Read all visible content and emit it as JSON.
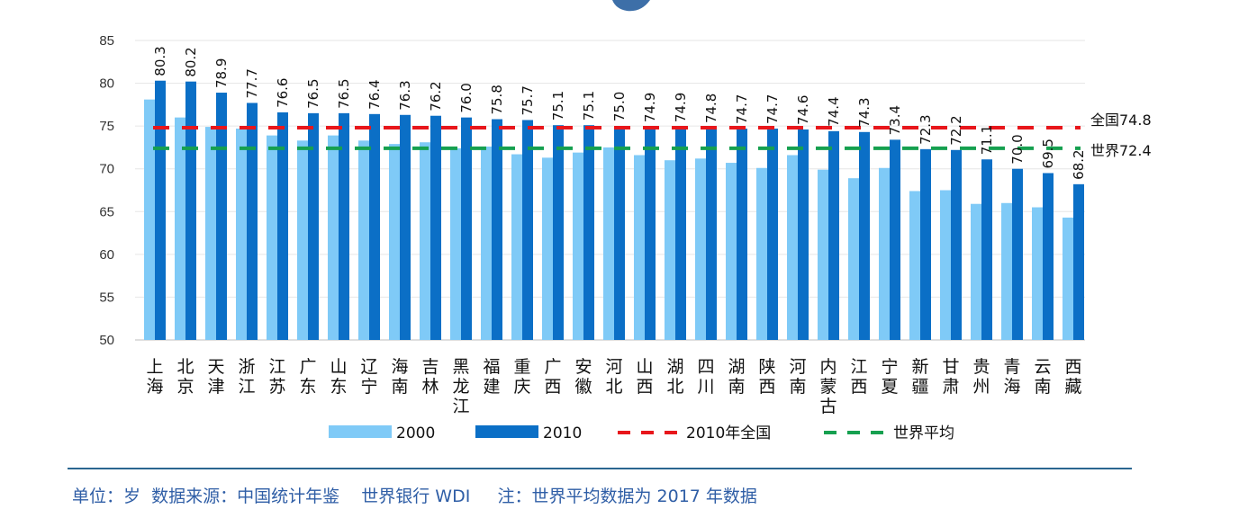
{
  "chart_data": {
    "type": "bar",
    "categories": [
      "上海",
      "北京",
      "天津",
      "浙江",
      "江苏",
      "广东",
      "山东",
      "辽宁",
      "海南",
      "吉林",
      "黑龙江",
      "福建",
      "重庆",
      "广西",
      "安徽",
      "河北",
      "山西",
      "湖北",
      "四川",
      "湖南",
      "陕西",
      "河南",
      "内蒙古",
      "江西",
      "宁夏",
      "新疆",
      "甘肃",
      "贵州",
      "青海",
      "云南",
      "西藏"
    ],
    "series": [
      {
        "name": "2000",
        "color": "#7fcaf7",
        "values": [
          78.1,
          76.0,
          74.9,
          74.7,
          73.9,
          73.3,
          73.9,
          73.3,
          72.9,
          73.1,
          72.4,
          72.6,
          71.7,
          71.3,
          71.9,
          72.5,
          71.6,
          71.0,
          71.2,
          70.7,
          70.1,
          71.6,
          69.9,
          68.9,
          70.1,
          67.4,
          67.5,
          65.9,
          66.0,
          65.5,
          64.3
        ]
      },
      {
        "name": "2010",
        "color": "#0b6fc6",
        "values": [
          80.3,
          80.2,
          78.9,
          77.7,
          76.6,
          76.5,
          76.5,
          76.4,
          76.3,
          76.2,
          76.0,
          75.8,
          75.7,
          75.1,
          75.1,
          75.0,
          74.9,
          74.9,
          74.8,
          74.7,
          74.7,
          74.6,
          74.4,
          74.3,
          73.4,
          72.3,
          72.2,
          71.1,
          70.0,
          69.5,
          68.2
        ],
        "labels": [
          "80.3",
          "80.2",
          "78.9",
          "77.7",
          "76.6",
          "76.5",
          "76.5",
          "76.4",
          "76.3",
          "76.2",
          "76.0",
          "75.8",
          "75.7",
          "75.1",
          "75.1",
          "75.0",
          "74.9",
          "74.9",
          "74.8",
          "74.7",
          "74.7",
          "74.6",
          "74.4",
          "74.3",
          "73.4",
          "72.3",
          "72.2",
          "71.1",
          "70.0",
          "69.5",
          "68.2"
        ]
      }
    ],
    "reference_lines": [
      {
        "name": "2010年全国",
        "value": 74.8,
        "label": "全国74.8",
        "color": "#e8161b",
        "style": "dashed"
      },
      {
        "name": "世界平均",
        "value": 72.4,
        "label": "世界72.4",
        "color": "#16a050",
        "style": "dashed"
      }
    ],
    "yticks": [
      "50",
      "55",
      "60",
      "65",
      "70",
      "75",
      "80",
      "85"
    ],
    "ylim": [
      50,
      85
    ],
    "grid": true,
    "legend": "bottom"
  },
  "footer": {
    "text": "单位：岁  数据来源：中国统计年鉴    世界银行 WDI     注：世界平均数据为 2017 年数据",
    "color": "#2f5ea6"
  }
}
